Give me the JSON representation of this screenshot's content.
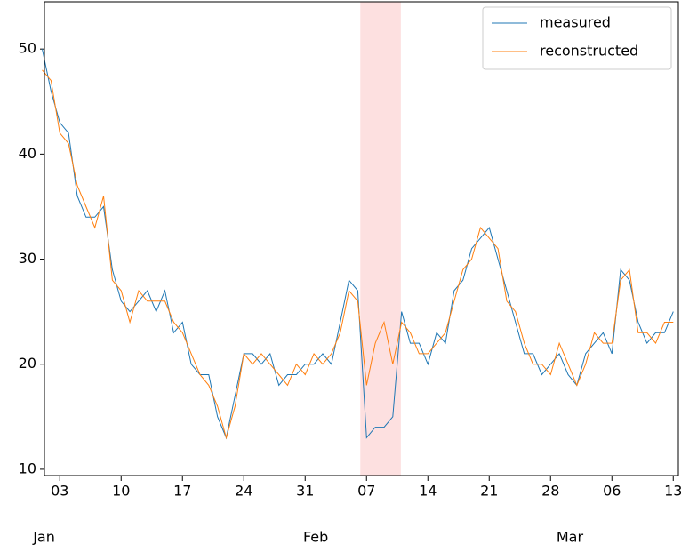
{
  "chart_data": {
    "type": "line",
    "x": [
      "01-01",
      "01-02",
      "01-03",
      "01-04",
      "01-05",
      "01-06",
      "01-07",
      "01-08",
      "01-09",
      "01-10",
      "01-11",
      "01-12",
      "01-13",
      "01-14",
      "01-15",
      "01-16",
      "01-17",
      "01-18",
      "01-19",
      "01-20",
      "01-21",
      "01-22",
      "01-23",
      "01-24",
      "01-25",
      "01-26",
      "01-27",
      "01-28",
      "01-29",
      "01-30",
      "01-31",
      "02-01",
      "02-02",
      "02-03",
      "02-04",
      "02-05",
      "02-06",
      "02-07",
      "02-08",
      "02-09",
      "02-10",
      "02-11",
      "02-12",
      "02-13",
      "02-14",
      "02-15",
      "02-16",
      "02-17",
      "02-18",
      "02-19",
      "02-20",
      "02-21",
      "02-22",
      "02-23",
      "02-24",
      "02-25",
      "02-26",
      "02-27",
      "02-28",
      "02-29",
      "03-01",
      "03-02",
      "03-03",
      "03-04",
      "03-05",
      "03-06",
      "03-07",
      "03-08",
      "03-09",
      "03-10",
      "03-11",
      "03-12",
      "03-13"
    ],
    "series": [
      {
        "name": "measured",
        "color": "#1f77b4",
        "values": [
          50,
          46,
          43,
          42,
          36,
          34,
          34,
          35,
          29,
          26,
          25,
          26,
          27,
          25,
          27,
          23,
          24,
          20,
          19,
          19,
          15,
          13,
          17,
          21,
          21,
          20,
          21,
          18,
          19,
          19,
          20,
          20,
          21,
          20,
          24,
          28,
          27,
          13,
          14,
          14,
          15,
          25,
          22,
          22,
          20,
          23,
          22,
          27,
          28,
          31,
          32,
          33,
          30,
          27,
          24,
          21,
          21,
          19,
          20,
          21,
          19,
          18,
          21,
          22,
          23,
          21,
          29,
          28,
          24,
          22,
          23,
          23,
          25
        ]
      },
      {
        "name": "reconstructed",
        "color": "#ff7f0e",
        "values": [
          48,
          47,
          42,
          41,
          37,
          35,
          33,
          36,
          28,
          27,
          24,
          27,
          26,
          26,
          26,
          24,
          23,
          21,
          19,
          18,
          16,
          13,
          16,
          21,
          20,
          21,
          20,
          19,
          18,
          20,
          19,
          21,
          20,
          21,
          23,
          27,
          26,
          18,
          22,
          24,
          20,
          24,
          23,
          21,
          21,
          22,
          23,
          26,
          29,
          30,
          33,
          32,
          31,
          26,
          25,
          22,
          20,
          20,
          19,
          22,
          20,
          18,
          20,
          23,
          22,
          22,
          28,
          29,
          23,
          23,
          22,
          24,
          24
        ]
      }
    ],
    "xlim": [
      "01-01 06:00",
      "03-13 14:00"
    ],
    "xticks": [
      {
        "value": "01-03",
        "label": "03"
      },
      {
        "value": "01-10",
        "label": "10"
      },
      {
        "value": "01-17",
        "label": "17"
      },
      {
        "value": "01-24",
        "label": "24"
      },
      {
        "value": "01-31",
        "label": "31"
      },
      {
        "value": "02-07",
        "label": "07"
      },
      {
        "value": "02-14",
        "label": "14"
      },
      {
        "value": "02-21",
        "label": "21"
      },
      {
        "value": "02-28",
        "label": "28"
      },
      {
        "value": "03-06",
        "label": "06"
      },
      {
        "value": "03-13",
        "label": "13"
      }
    ],
    "month_ticks": [
      {
        "value": "01-01",
        "label": "Jan"
      },
      {
        "value": "02-01",
        "label": "Feb"
      },
      {
        "value": "03-01",
        "label": "Mar"
      }
    ],
    "ylim": [
      9.4,
      54.5
    ],
    "yticks": [
      10,
      20,
      30,
      40,
      50
    ],
    "highlight": {
      "start": "02-06 07:00",
      "end": "02-10 22:00",
      "color": "#fde0e0"
    },
    "legend": "upper right"
  }
}
